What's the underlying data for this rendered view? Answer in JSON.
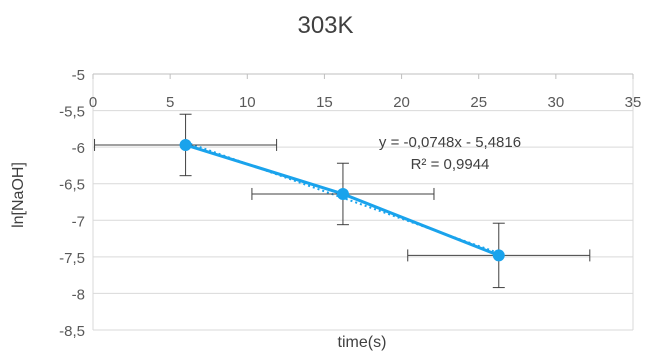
{
  "chart_data": {
    "type": "scatter",
    "title": "303K",
    "xlabel": "time(s)",
    "ylabel": "ln[NaOH]",
    "xlim": [
      0,
      35
    ],
    "ylim": [
      -8.5,
      -5
    ],
    "x_ticks": [
      "0",
      "5",
      "10",
      "15",
      "20",
      "25",
      "30",
      "35"
    ],
    "y_ticks": [
      "-5",
      "-5,5",
      "-6",
      "-6,5",
      "-7",
      "-7,5",
      "-8",
      "-8,5"
    ],
    "x_tick_values": [
      0,
      5,
      10,
      15,
      20,
      25,
      30,
      35
    ],
    "y_tick_values": [
      -5,
      -5.5,
      -6,
      -6.5,
      -7,
      -7.5,
      -8,
      -8.5
    ],
    "grid": "horizontal",
    "series": [
      {
        "points": [
          {
            "x": 6,
            "y": -5.97,
            "xerr": 5.9,
            "yerr": 0.42
          },
          {
            "x": 16.2,
            "y": -6.64,
            "xerr": 5.9,
            "yerr": 0.42
          },
          {
            "x": 26.3,
            "y": -7.48,
            "xerr": 5.9,
            "yerr": 0.44
          }
        ],
        "color": "#1aa3ec"
      }
    ],
    "trendline": {
      "equation": "y = -0,0748x - 5,4816",
      "r_squared": "R² = 0,9944",
      "slope": -0.0748,
      "intercept": -5.4816,
      "style": "dotted"
    },
    "colors": {
      "series": "#1aa3ec",
      "error_bars": "#404040",
      "grid": "#d9d9d9",
      "axis": "#bfbfbf",
      "tick_text": "#595959"
    }
  }
}
